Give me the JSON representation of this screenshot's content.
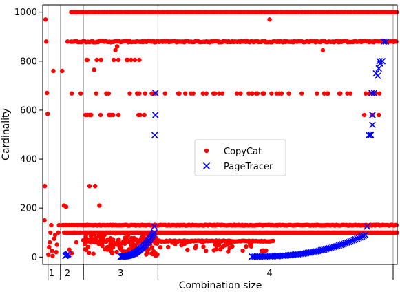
{
  "chart_data": {
    "type": "scatter",
    "title": "",
    "xlabel": "Combination size",
    "ylabel": "Cardinality",
    "ylim": [
      -30,
      1030
    ],
    "yticks": [
      0,
      200,
      400,
      600,
      800,
      1000
    ],
    "xlim": [
      0,
      1000
    ],
    "x_groups": [
      {
        "label": "1",
        "start": 0,
        "end": 50
      },
      {
        "label": "2",
        "start": 50,
        "end": 115
      },
      {
        "label": "3",
        "start": 115,
        "end": 325
      },
      {
        "label": "4",
        "start": 325,
        "end": 1000
      }
    ],
    "grid": false,
    "legend": "center-right",
    "series": [
      {
        "name": "CopyCat",
        "marker": "circle",
        "color": "#ff0000"
      },
      {
        "name": "PageTracer",
        "marker": "x",
        "color": "#0000ff"
      }
    ],
    "note_levels_copycat": [
      1000,
      880,
      668,
      580,
      130,
      100,
      65,
      5
    ],
    "note_levels_pagetracer_group4_end": [
      498,
      580,
      670,
      750,
      790,
      880
    ]
  }
}
